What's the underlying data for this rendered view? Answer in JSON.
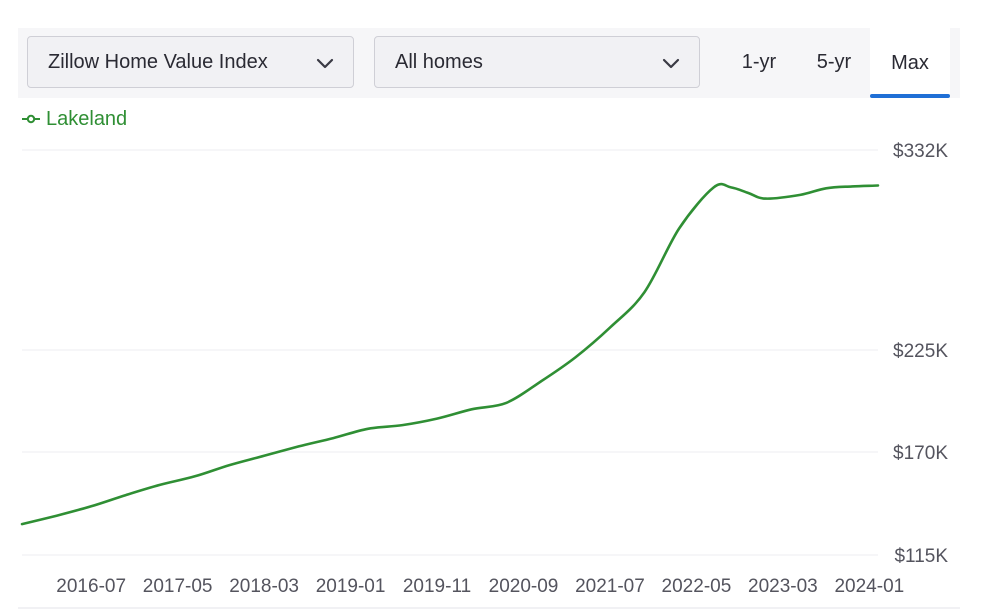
{
  "controls": {
    "metric_value": "Zillow Home Value Index",
    "home_type_value": "All homes",
    "ranges": [
      "1-yr",
      "5-yr",
      "Max"
    ],
    "selected_range": "Max",
    "accent_color": "#1f6fd6"
  },
  "chart_data": {
    "type": "line",
    "series": [
      {
        "name": "Lakeland",
        "color": "#2f8f34",
        "points": [
          [
            "2015-11",
            131.5
          ],
          [
            "2016-03",
            136.0
          ],
          [
            "2016-07",
            141.0
          ],
          [
            "2016-11",
            147.0
          ],
          [
            "2017-03",
            152.5
          ],
          [
            "2017-07",
            157.0
          ],
          [
            "2017-11",
            163.0
          ],
          [
            "2018-03",
            168.0
          ],
          [
            "2018-07",
            173.0
          ],
          [
            "2018-11",
            177.5
          ],
          [
            "2019-03",
            182.5
          ],
          [
            "2019-07",
            184.5
          ],
          [
            "2019-11",
            188.0
          ],
          [
            "2020-03",
            193.0
          ],
          [
            "2020-07",
            196.5
          ],
          [
            "2020-11",
            208.0
          ],
          [
            "2021-03",
            221.0
          ],
          [
            "2021-07",
            237.0
          ],
          [
            "2021-11",
            256.0
          ],
          [
            "2022-03",
            290.0
          ],
          [
            "2022-07",
            312.0
          ],
          [
            "2022-09",
            312.0
          ],
          [
            "2022-11",
            309.0
          ],
          [
            "2023-01",
            306.0
          ],
          [
            "2023-05",
            308.0
          ],
          [
            "2023-08",
            311.5
          ],
          [
            "2023-11",
            312.5
          ],
          [
            "2024-02",
            313.0
          ]
        ]
      }
    ],
    "y_ticks": [
      "$332K",
      "$225K",
      "$170K",
      "$115K"
    ],
    "y_tick_values": [
      332,
      225,
      170,
      115
    ],
    "ylim": [
      115,
      332
    ],
    "x_ticks": [
      "2016-07",
      "2017-05",
      "2018-03",
      "2019-01",
      "2019-11",
      "2020-09",
      "2021-07",
      "2022-05",
      "2023-03",
      "2024-01"
    ],
    "xlim": [
      "2015-11",
      "2024-02"
    ],
    "grid": true,
    "legend_position": "top-left",
    "grid_color": "#ececf0"
  }
}
